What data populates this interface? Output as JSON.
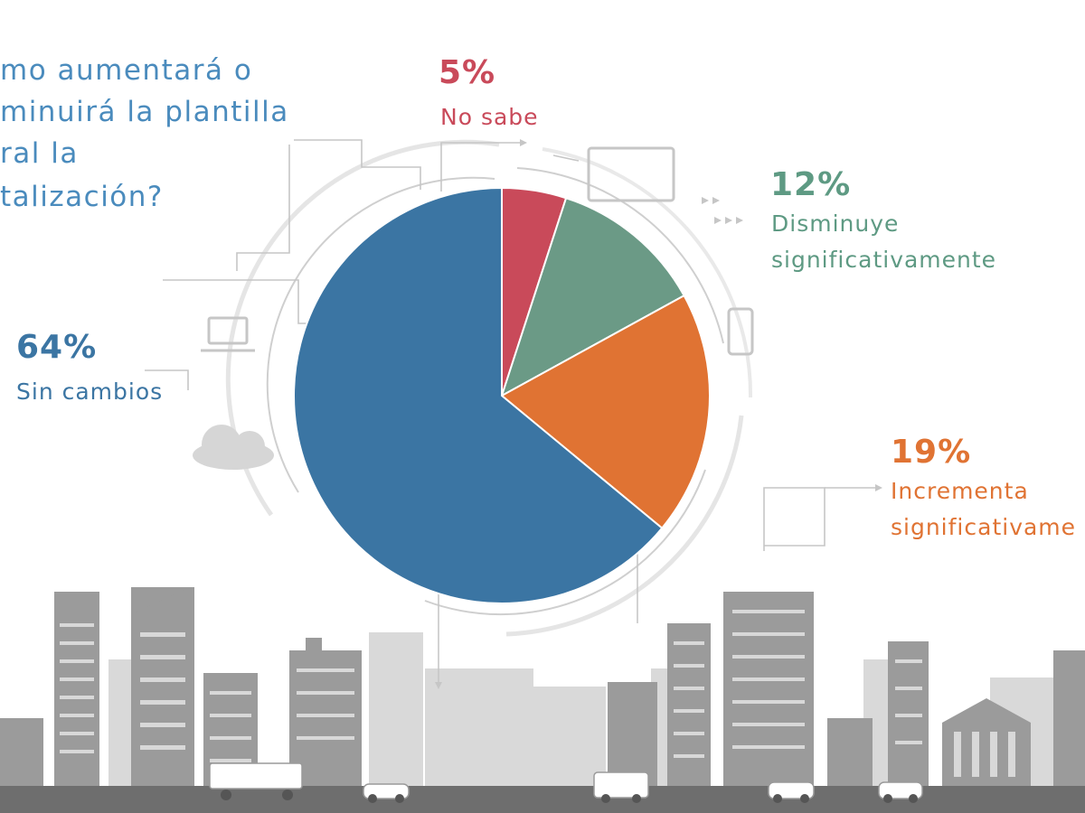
{
  "question": {
    "lines": [
      "mo aumentará o",
      "minuirá la plantilla",
      "ral la",
      "talización?"
    ]
  },
  "chart_data": {
    "type": "pie",
    "slices": [
      {
        "label": "No sabe",
        "value": 5,
        "display": "5%",
        "color": "#c94a5a"
      },
      {
        "label": "Disminuye significativamente",
        "value": 12,
        "display": "12%",
        "color": "#6b9a86"
      },
      {
        "label": "Incrementa significativame",
        "value": 19,
        "display": "19%",
        "color": "#e07333"
      },
      {
        "label": "Sin cambios",
        "value": 64,
        "display": "64%",
        "color": "#3b75a3"
      }
    ],
    "start_angle_deg": 0,
    "direction": "clockwise"
  },
  "labels": {
    "no_sabe": {
      "pct": "5%",
      "lines": [
        "No sabe"
      ]
    },
    "disminuye": {
      "pct": "12%",
      "lines": [
        "Disminuye",
        "significativamente"
      ]
    },
    "sin_cambios": {
      "pct": "64%",
      "lines": [
        "Sin cambios"
      ]
    },
    "incrementa": {
      "pct": "19%",
      "lines": [
        "Incrementa",
        "significativame"
      ]
    }
  },
  "colors": {
    "decor": "#c9c9c9",
    "buildings": "#9d9d9d",
    "buildings_light": "#d4d4d4",
    "ground": "#6e6e6e"
  }
}
